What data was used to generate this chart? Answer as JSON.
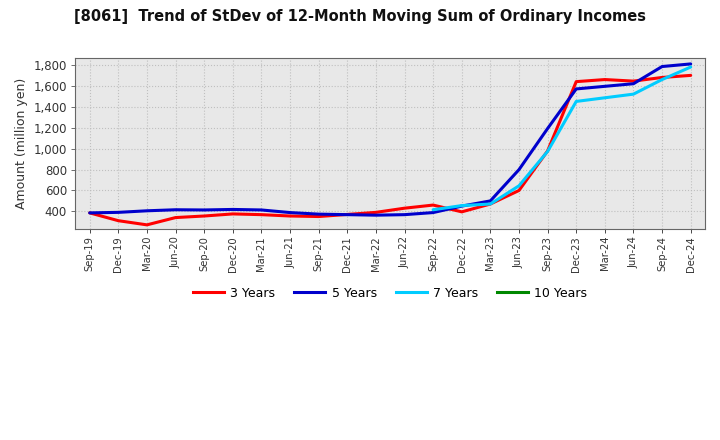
{
  "title": "[8061]  Trend of StDev of 12-Month Moving Sum of Ordinary Incomes",
  "ylabel": "Amount (million yen)",
  "background_color": "#ffffff",
  "plot_bg_color": "#e8e8e8",
  "grid_color": "#bbbbbb",
  "x_labels": [
    "Sep-19",
    "Dec-19",
    "Mar-20",
    "Jun-20",
    "Sep-20",
    "Dec-20",
    "Mar-21",
    "Jun-21",
    "Sep-21",
    "Dec-21",
    "Mar-22",
    "Jun-22",
    "Sep-22",
    "Dec-22",
    "Mar-23",
    "Jun-23",
    "Sep-23",
    "Dec-23",
    "Mar-24",
    "Jun-24",
    "Sep-24",
    "Dec-24"
  ],
  "ylim": [
    230,
    1870
  ],
  "yticks": [
    400,
    600,
    800,
    1000,
    1200,
    1400,
    1600,
    1800
  ],
  "series": {
    "3 Years": {
      "color": "#ff0000",
      "data": [
        385,
        310,
        270,
        340,
        355,
        375,
        368,
        355,
        350,
        370,
        390,
        430,
        460,
        395,
        470,
        600,
        980,
        1645,
        1665,
        1650,
        1685,
        1705
      ]
    },
    "5 Years": {
      "color": "#0000cc",
      "data": [
        385,
        390,
        405,
        415,
        413,
        418,
        413,
        388,
        373,
        368,
        363,
        368,
        388,
        450,
        500,
        800,
        1195,
        1575,
        1600,
        1625,
        1790,
        1815
      ]
    },
    "7 Years": {
      "color": "#00ccff",
      "data": [
        null,
        null,
        null,
        null,
        null,
        null,
        null,
        null,
        null,
        null,
        null,
        null,
        415,
        455,
        470,
        645,
        975,
        1455,
        1490,
        1525,
        1665,
        1785
      ]
    },
    "10 Years": {
      "color": "#008800",
      "data": [
        null,
        null,
        null,
        null,
        null,
        null,
        null,
        null,
        null,
        null,
        null,
        null,
        null,
        null,
        null,
        null,
        null,
        null,
        null,
        null,
        null,
        null
      ]
    }
  },
  "legend_series": [
    {
      "label": "3 Years",
      "color": "#ff0000"
    },
    {
      "label": "5 Years",
      "color": "#0000cc"
    },
    {
      "label": "7 Years",
      "color": "#00ccff"
    },
    {
      "label": "10 Years",
      "color": "#008800"
    }
  ],
  "linewidth": 2.2
}
